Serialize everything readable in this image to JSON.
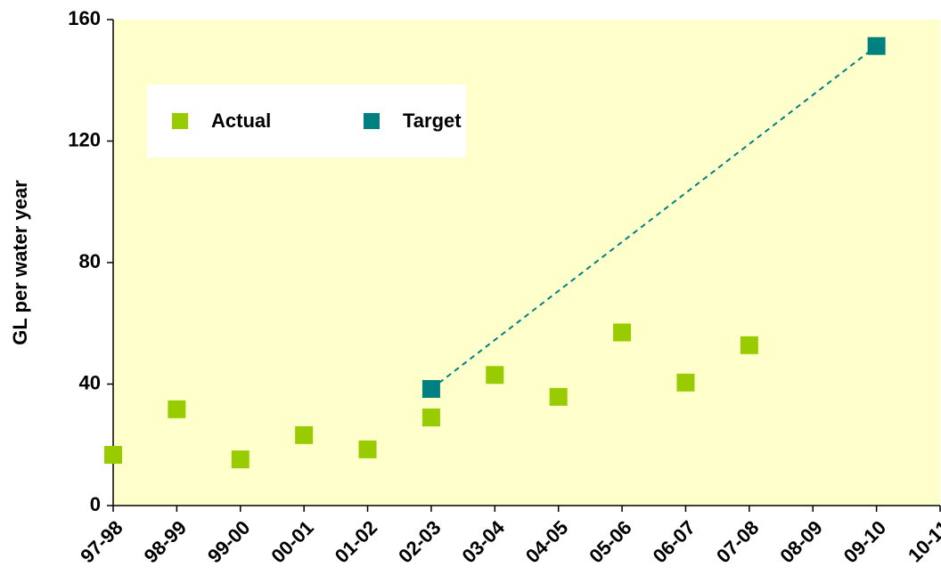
{
  "chart_data": {
    "type": "scatter",
    "y_label": "GL per water year",
    "categories": [
      "97-98",
      "98-99",
      "99-00",
      "00-01",
      "01-02",
      "02-03",
      "03-04",
      "04-05",
      "05-06",
      "06-07",
      "07-08",
      "08-09",
      "09-10",
      "10-11"
    ],
    "series": [
      {
        "name": "Actual",
        "color": "#99cc00",
        "x": [
          "97-98",
          "98-99",
          "99-00",
          "00-01",
          "01-02",
          "02-03",
          "03-04",
          "04-05",
          "05-06",
          "06-07",
          "07-08"
        ],
        "values": [
          16.7,
          31.7,
          15.2,
          23.2,
          18.5,
          29,
          43,
          35.8,
          57,
          40.5,
          52.8
        ]
      },
      {
        "name": "Target",
        "color": "#008080",
        "x": [
          "02-03",
          "09-10"
        ],
        "values": [
          38.4,
          151.3
        ],
        "line": "dashed"
      }
    ],
    "ylim": [
      0,
      160
    ],
    "yticks": [
      0,
      40,
      80,
      120,
      160
    ],
    "background": "#ffffcc"
  }
}
